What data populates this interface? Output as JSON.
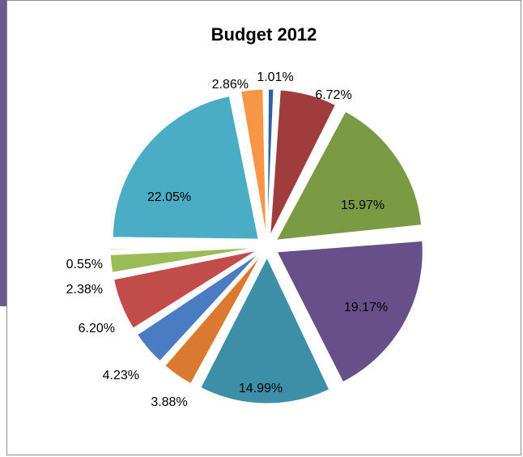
{
  "chart_data": {
    "type": "pie",
    "title": "Budget 2012",
    "legend": "none",
    "slices": [
      {
        "value": 1.01,
        "label": "1.01%",
        "color": "#2f5f9e"
      },
      {
        "value": 6.72,
        "label": "6.72%",
        "color": "#9e3d3b"
      },
      {
        "value": 15.97,
        "label": "15.97%",
        "color": "#7a9a44"
      },
      {
        "value": 19.17,
        "label": "19.17%",
        "color": "#67508a"
      },
      {
        "value": 14.99,
        "label": "14.99%",
        "color": "#3c8fa6"
      },
      {
        "value": 3.88,
        "label": "3.88%",
        "color": "#d97a30"
      },
      {
        "value": 4.23,
        "label": "4.23%",
        "color": "#4a7cc4"
      },
      {
        "value": 6.2,
        "label": "6.20%",
        "color": "#c24c4a"
      },
      {
        "value": 2.38,
        "label": "2.38%",
        "color": "#9bbb59"
      },
      {
        "value": 0.55,
        "label": "0.55%",
        "color": "#8064a2"
      },
      {
        "value": 22.05,
        "label": "22.05%",
        "color": "#4bacc6"
      },
      {
        "value": 2.86,
        "label": "2.86%",
        "color": "#f79646"
      }
    ]
  }
}
